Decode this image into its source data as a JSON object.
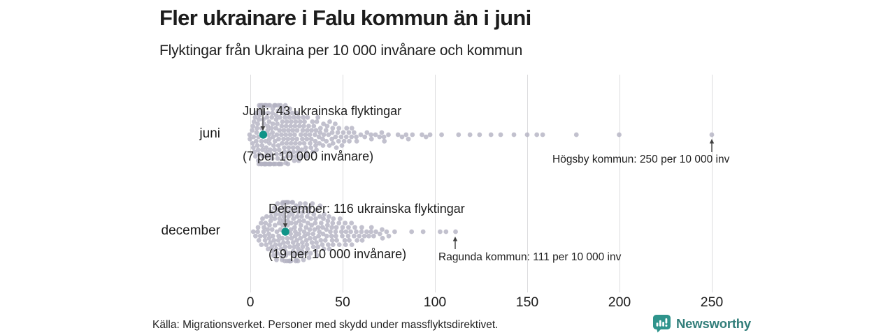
{
  "chart_data": {
    "type": "scatter",
    "variant": "beeswarm",
    "title": "Fler ukrainare i Falu kommun än i juni",
    "subtitle": "Flyktingar från Ukraina per 10 000 invånare och kommun",
    "xlabel": "",
    "ylabel": "",
    "x_ticks": [
      0,
      50,
      100,
      150,
      200,
      250
    ],
    "x_range": [
      0,
      260
    ],
    "grid": "vertical",
    "legend": "none",
    "rows": [
      {
        "label": "juni",
        "highlight_value": 7,
        "annotation": {
          "line1": "Juni:  43 ukrainska flyktingar",
          "line2": "(7 per 10 000 invånare)"
        },
        "outlier": {
          "value": 250,
          "text": "Högsby kommun: 250 per 10 000 inv"
        },
        "points": [
          [
            0,
            2
          ],
          [
            1,
            3
          ],
          [
            2,
            4
          ],
          [
            3,
            5
          ],
          [
            4,
            6
          ],
          [
            5,
            7
          ],
          [
            6,
            7
          ],
          [
            7,
            8
          ],
          [
            8,
            8
          ],
          [
            9,
            8
          ],
          [
            10,
            8
          ],
          [
            11,
            7
          ],
          [
            12,
            7
          ],
          [
            13,
            7
          ],
          [
            14,
            7
          ],
          [
            15,
            7
          ],
          [
            16,
            6
          ],
          [
            17,
            6
          ],
          [
            18,
            6
          ],
          [
            19,
            6
          ],
          [
            20,
            6
          ],
          [
            21,
            5
          ],
          [
            22,
            5
          ],
          [
            23,
            5
          ],
          [
            24,
            5
          ],
          [
            25,
            5
          ],
          [
            26,
            4
          ],
          [
            27,
            4
          ],
          [
            28,
            4
          ],
          [
            29,
            4
          ],
          [
            30,
            4
          ],
          [
            31,
            3
          ],
          [
            32,
            3
          ],
          [
            33,
            3
          ],
          [
            34,
            3
          ],
          [
            35,
            3
          ],
          [
            36,
            3
          ],
          [
            37,
            3
          ],
          [
            38,
            2
          ],
          [
            39,
            2
          ],
          [
            40,
            2
          ],
          [
            41,
            2
          ],
          [
            42,
            2
          ],
          [
            43,
            2
          ],
          [
            44,
            2
          ],
          [
            45,
            2
          ],
          [
            46,
            2
          ],
          [
            47,
            2
          ],
          [
            48,
            2
          ],
          [
            49,
            1
          ],
          [
            50,
            2
          ],
          [
            51,
            1
          ],
          [
            52,
            2
          ],
          [
            53,
            1
          ],
          [
            54,
            1
          ],
          [
            55,
            2
          ],
          [
            56,
            1
          ],
          [
            57,
            1
          ],
          [
            58,
            1
          ],
          [
            60,
            1
          ],
          [
            62,
            1
          ],
          [
            63,
            1
          ],
          [
            65,
            1
          ],
          [
            66,
            1
          ],
          [
            68,
            1
          ],
          [
            70,
            1
          ],
          [
            71,
            1
          ],
          [
            72,
            1
          ],
          [
            73,
            1
          ],
          [
            75,
            1
          ],
          [
            80,
            1
          ],
          [
            82,
            1
          ],
          [
            84,
            1
          ],
          [
            86,
            1
          ],
          [
            88,
            1
          ],
          [
            93,
            1
          ],
          [
            95,
            1
          ],
          [
            97,
            1
          ],
          [
            104,
            1
          ],
          [
            113,
            1
          ],
          [
            119,
            1
          ],
          [
            124,
            1
          ],
          [
            130,
            1
          ],
          [
            136,
            1
          ],
          [
            143,
            1
          ],
          [
            150,
            1
          ],
          [
            155,
            1
          ],
          [
            158,
            1
          ],
          [
            177,
            1
          ],
          [
            200,
            1
          ],
          [
            250,
            1
          ]
        ]
      },
      {
        "label": "december",
        "highlight_value": 19,
        "annotation": {
          "line1": "December: 116 ukrainska flyktingar",
          "line2": "(19 per 10 000 invånare)"
        },
        "outlier": {
          "value": 111,
          "text": "Ragunda kommun: 111 per 10 000 inv"
        },
        "points": [
          [
            2,
            1
          ],
          [
            3,
            1
          ],
          [
            4,
            2
          ],
          [
            5,
            2
          ],
          [
            6,
            2
          ],
          [
            7,
            3
          ],
          [
            8,
            3
          ],
          [
            9,
            3
          ],
          [
            10,
            4
          ],
          [
            11,
            4
          ],
          [
            12,
            4
          ],
          [
            13,
            5
          ],
          [
            14,
            5
          ],
          [
            15,
            5
          ],
          [
            16,
            5
          ],
          [
            17,
            6
          ],
          [
            18,
            6
          ],
          [
            19,
            7
          ],
          [
            20,
            7
          ],
          [
            21,
            7
          ],
          [
            22,
            7
          ],
          [
            23,
            6
          ],
          [
            24,
            6
          ],
          [
            25,
            6
          ],
          [
            26,
            6
          ],
          [
            27,
            6
          ],
          [
            28,
            5
          ],
          [
            29,
            5
          ],
          [
            30,
            5
          ],
          [
            31,
            5
          ],
          [
            32,
            5
          ],
          [
            33,
            4
          ],
          [
            34,
            4
          ],
          [
            35,
            4
          ],
          [
            36,
            4
          ],
          [
            37,
            4
          ],
          [
            38,
            4
          ],
          [
            39,
            3
          ],
          [
            40,
            3
          ],
          [
            41,
            3
          ],
          [
            42,
            3
          ],
          [
            43,
            3
          ],
          [
            44,
            3
          ],
          [
            45,
            3
          ],
          [
            46,
            2
          ],
          [
            47,
            2
          ],
          [
            48,
            2
          ],
          [
            49,
            2
          ],
          [
            50,
            2
          ],
          [
            51,
            2
          ],
          [
            52,
            2
          ],
          [
            53,
            2
          ],
          [
            54,
            2
          ],
          [
            55,
            2
          ],
          [
            56,
            1
          ],
          [
            57,
            2
          ],
          [
            58,
            1
          ],
          [
            59,
            1
          ],
          [
            60,
            2
          ],
          [
            61,
            1
          ],
          [
            62,
            1
          ],
          [
            63,
            1
          ],
          [
            64,
            1
          ],
          [
            65,
            1
          ],
          [
            66,
            1
          ],
          [
            67,
            1
          ],
          [
            68,
            1
          ],
          [
            70,
            1
          ],
          [
            71,
            1
          ],
          [
            72,
            1
          ],
          [
            74,
            1
          ],
          [
            75,
            1
          ],
          [
            78,
            1
          ],
          [
            87,
            1
          ],
          [
            94,
            1
          ],
          [
            103,
            1
          ],
          [
            106,
            1
          ],
          [
            111,
            1
          ]
        ]
      }
    ]
  },
  "footer": {
    "source": "Källa: Migrationsverket. Personer med skydd under massflyktsdirektivet.",
    "brand": "Newsworthy"
  },
  "colors": {
    "dot": "#b3b1c2",
    "dot_opacity": 0.8,
    "highlight": "#0f9488",
    "gridline": "#dcdcde",
    "arrow": "#3f3f3f",
    "brand_icon": "#2f948c",
    "brand_text": "#327e7a"
  }
}
